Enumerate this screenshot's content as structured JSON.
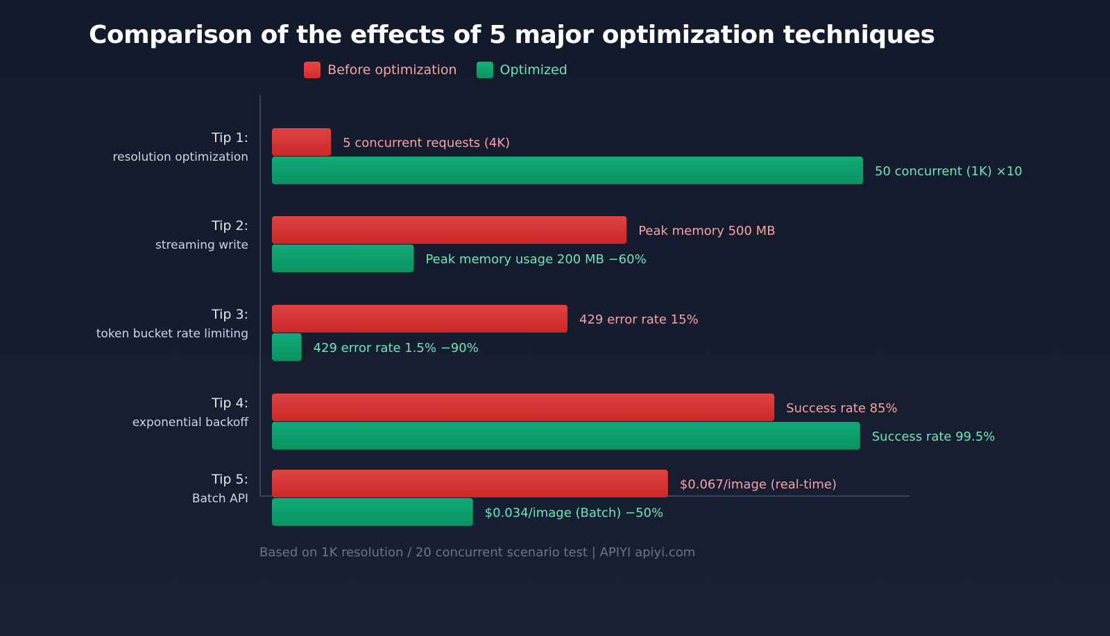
{
  "chart_data": {
    "type": "bar",
    "orientation": "horizontal",
    "title": "Comparison of the effects of 5 major optimization techniques",
    "categories": [
      [
        "Tip 1:",
        "resolution optimization"
      ],
      [
        "Tip 2:",
        "streaming write"
      ],
      [
        "Tip 3:",
        "token bucket rate limiting"
      ],
      [
        "Tip 4:",
        "exponential backoff"
      ],
      [
        "Tip 5:",
        "Batch API"
      ]
    ],
    "series": [
      {
        "name": "Before optimization",
        "color": "#dc3535",
        "label_color": "#f8a3a3",
        "values": [
          10,
          60,
          50,
          85,
          67
        ],
        "labels": [
          "5 concurrent requests (4K)",
          "Peak memory 500 MB",
          "429 error rate 15%",
          "Success rate 85%",
          "$0.067/image (real-time)"
        ]
      },
      {
        "name": "Optimized",
        "color": "#10a26f",
        "label_color": "#6ee7b7",
        "values": [
          100,
          24,
          5,
          99.5,
          34
        ],
        "labels": [
          "50 concurrent (1K) ×10",
          "Peak memory usage 200 MB −60%",
          "429 error rate 1.5% −90%",
          "Success rate 99.5%",
          "$0.034/image (Batch) −50%"
        ]
      }
    ],
    "xlim": [
      0,
      100
    ],
    "grid": false,
    "legend": "top-center",
    "footnote": "Based on 1K resolution / 20 concurrent scenario test | APIYI apiyi.com"
  }
}
